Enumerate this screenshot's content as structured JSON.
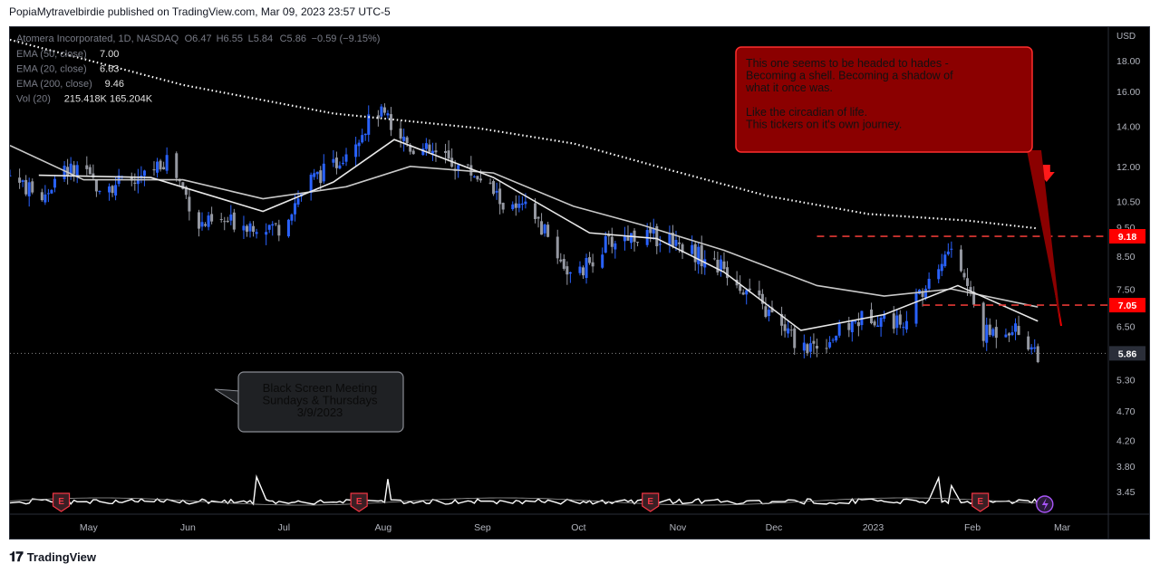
{
  "header": {
    "text": "PopiaMytravelbirdie published on TradingView.com, Mar 09, 2023 23:57 UTC-5"
  },
  "footer": {
    "logo_text": "TradingView"
  },
  "legend": {
    "symbol": "Atomera Incorporated, 1D, NASDAQ",
    "ohlc": [
      {
        "k": "O",
        "v": "6.47"
      },
      {
        "k": "H",
        "v": "6.55"
      },
      {
        "k": "L",
        "v": "5.84"
      },
      {
        "k": "C",
        "v": "5.86"
      },
      {
        "k": "",
        "v": "−0.59 (−9.15%)"
      }
    ],
    "indicators": [
      {
        "label": "EMA (50, close)",
        "value": "7.00"
      },
      {
        "label": "EMA (20, close)",
        "value": "6.63"
      },
      {
        "label": "EMA (200, close)",
        "value": "9.46"
      },
      {
        "label": "Vol (20)",
        "value": "215.418K  165.204K"
      }
    ]
  },
  "annotations": {
    "red_box_lines": [
      "This one seems to be headed to hades -",
      "Becoming a shell. Becoming a shadow of",
      "what it once was.",
      "",
      "Like the circadian of life.",
      "This tickers on it's own journey."
    ],
    "gray_box_lines": [
      "Black Screen Meeting",
      "Sundays & Thursdays",
      "3/9/2023"
    ]
  },
  "chart_data": {
    "type": "candlestick",
    "title": "Atomera Incorporated, 1D, NASDAQ",
    "currency": "USD",
    "y_scale": "log",
    "ylim": [
      3.3,
      20.0
    ],
    "y_ticks": [
      "18.00",
      "16.00",
      "14.00",
      "12.00",
      "10.50",
      "9.50",
      "8.50",
      "7.50",
      "6.50",
      "5.30",
      "4.70",
      "4.20",
      "3.80",
      "3.45"
    ],
    "y_tick_values": [
      18.0,
      16.0,
      14.0,
      12.0,
      10.5,
      9.5,
      8.5,
      7.5,
      6.5,
      5.3,
      4.7,
      4.2,
      3.8,
      3.45
    ],
    "x_ticks": [
      "May",
      "Jun",
      "Jul",
      "Aug",
      "Sep",
      "Oct",
      "Nov",
      "Dec",
      "2023",
      "Feb",
      "Mar"
    ],
    "x_tick_dates": [
      "2022-05-01",
      "2022-06-01",
      "2022-07-01",
      "2022-08-01",
      "2022-09-01",
      "2022-10-01",
      "2022-11-01",
      "2022-12-01",
      "2023-01-01",
      "2023-02-01",
      "2023-03-01"
    ],
    "x_range": [
      "2022-04-22",
      "2023-03-31"
    ],
    "price_labels": [
      {
        "label": "9.18",
        "value": 9.18,
        "color": "#e53935"
      },
      {
        "label": "7.05",
        "value": 7.05,
        "color": "#e53935"
      },
      {
        "label": "5.86",
        "value": 5.86,
        "color": "#ffffff"
      }
    ],
    "horizontal_lines": [
      {
        "value": 9.18,
        "from": "2022-12-30",
        "color": "#e53935",
        "style": "dashed"
      },
      {
        "value": 7.05,
        "from": "2023-02-01",
        "color": "#e53935",
        "style": "dashed"
      },
      {
        "value": 5.86,
        "from": "2022-04-22",
        "color": "#888888",
        "style": "dotted"
      }
    ],
    "ohlc_approx": [
      {
        "date": "2022-04-22",
        "close": 11.6
      },
      {
        "date": "2022-05-01",
        "close": 10.6
      },
      {
        "date": "2022-05-10",
        "close": 11.9
      },
      {
        "date": "2022-05-20",
        "close": 11.2
      },
      {
        "date": "2022-06-01",
        "close": 11.3
      },
      {
        "date": "2022-06-10",
        "close": 12.4
      },
      {
        "date": "2022-06-20",
        "close": 9.6
      },
      {
        "date": "2022-07-01",
        "close": 9.7
      },
      {
        "date": "2022-07-15",
        "close": 9.5
      },
      {
        "date": "2022-07-25",
        "close": 11.4
      },
      {
        "date": "2022-08-01",
        "close": 12.0
      },
      {
        "date": "2022-08-15",
        "close": 14.8
      },
      {
        "date": "2022-08-25",
        "close": 13.0
      },
      {
        "date": "2022-09-01",
        "close": 12.6
      },
      {
        "date": "2022-09-15",
        "close": 11.6
      },
      {
        "date": "2022-09-25",
        "close": 10.1
      },
      {
        "date": "2022-10-01",
        "close": 10.2
      },
      {
        "date": "2022-10-15",
        "close": 7.7
      },
      {
        "date": "2022-10-25",
        "close": 8.9
      },
      {
        "date": "2022-11-01",
        "close": 9.2
      },
      {
        "date": "2022-11-15",
        "close": 9.1
      },
      {
        "date": "2022-11-25",
        "close": 8.4
      },
      {
        "date": "2022-12-01",
        "close": 8.1
      },
      {
        "date": "2022-12-15",
        "close": 6.8
      },
      {
        "date": "2022-12-25",
        "close": 6.0
      },
      {
        "date": "2023-01-01",
        "close": 6.1
      },
      {
        "date": "2023-01-15",
        "close": 6.8
      },
      {
        "date": "2023-01-25",
        "close": 6.6
      },
      {
        "date": "2023-02-01",
        "close": 7.4
      },
      {
        "date": "2023-02-10",
        "close": 8.8
      },
      {
        "date": "2023-02-20",
        "close": 6.3
      },
      {
        "date": "2023-03-01",
        "close": 6.5
      },
      {
        "date": "2023-03-09",
        "close": 5.86
      }
    ],
    "series": [
      {
        "name": "EMA (50, close)",
        "color": "#c8c8c8",
        "points": [
          {
            "date": "2022-04-22",
            "value": 13.0
          },
          {
            "date": "2022-05-15",
            "value": 11.4
          },
          {
            "date": "2022-06-15",
            "value": 11.4
          },
          {
            "date": "2022-07-10",
            "value": 10.6
          },
          {
            "date": "2022-08-05",
            "value": 11.1
          },
          {
            "date": "2022-08-25",
            "value": 12.0
          },
          {
            "date": "2022-09-20",
            "value": 11.7
          },
          {
            "date": "2022-10-15",
            "value": 10.3
          },
          {
            "date": "2022-11-05",
            "value": 9.6
          },
          {
            "date": "2022-12-01",
            "value": 8.7
          },
          {
            "date": "2022-12-30",
            "value": 7.6
          },
          {
            "date": "2023-01-20",
            "value": 7.3
          },
          {
            "date": "2023-02-10",
            "value": 7.5
          },
          {
            "date": "2023-03-09",
            "value": 7.0
          }
        ]
      },
      {
        "name": "EMA (20, close)",
        "color": "#e8e8e8",
        "points": [
          {
            "date": "2022-05-01",
            "value": 11.6
          },
          {
            "date": "2022-06-05",
            "value": 11.5
          },
          {
            "date": "2022-07-10",
            "value": 10.1
          },
          {
            "date": "2022-08-01",
            "value": 11.3
          },
          {
            "date": "2022-08-20",
            "value": 13.3
          },
          {
            "date": "2022-09-20",
            "value": 11.5
          },
          {
            "date": "2022-10-20",
            "value": 9.3
          },
          {
            "date": "2022-11-10",
            "value": 9.1
          },
          {
            "date": "2022-12-01",
            "value": 8.0
          },
          {
            "date": "2022-12-25",
            "value": 6.4
          },
          {
            "date": "2023-01-20",
            "value": 6.8
          },
          {
            "date": "2023-02-12",
            "value": 7.6
          },
          {
            "date": "2023-03-09",
            "value": 6.63
          }
        ]
      },
      {
        "name": "EMA (200, close)",
        "color": "#ffffff",
        "style": "dotted",
        "points": [
          {
            "date": "2022-04-22",
            "value": 19.5
          },
          {
            "date": "2022-06-15",
            "value": 16.4
          },
          {
            "date": "2022-08-01",
            "value": 14.7
          },
          {
            "date": "2022-09-15",
            "value": 13.9
          },
          {
            "date": "2022-10-15",
            "value": 13.1
          },
          {
            "date": "2022-11-15",
            "value": 11.8
          },
          {
            "date": "2022-12-15",
            "value": 10.7
          },
          {
            "date": "2023-01-15",
            "value": 10.0
          },
          {
            "date": "2023-02-15",
            "value": 9.75
          },
          {
            "date": "2023-03-09",
            "value": 9.46
          }
        ]
      },
      {
        "name": "Vol (20)",
        "color": "#ffffff",
        "values_k": [
          215.418,
          165.204
        ]
      }
    ],
    "earnings_markers": [
      "2022-05-08",
      "2022-08-09",
      "2022-11-08",
      "2023-02-19"
    ],
    "lightning_marker": "2023-03-10",
    "down_arrow_marker": "2023-03-10"
  }
}
